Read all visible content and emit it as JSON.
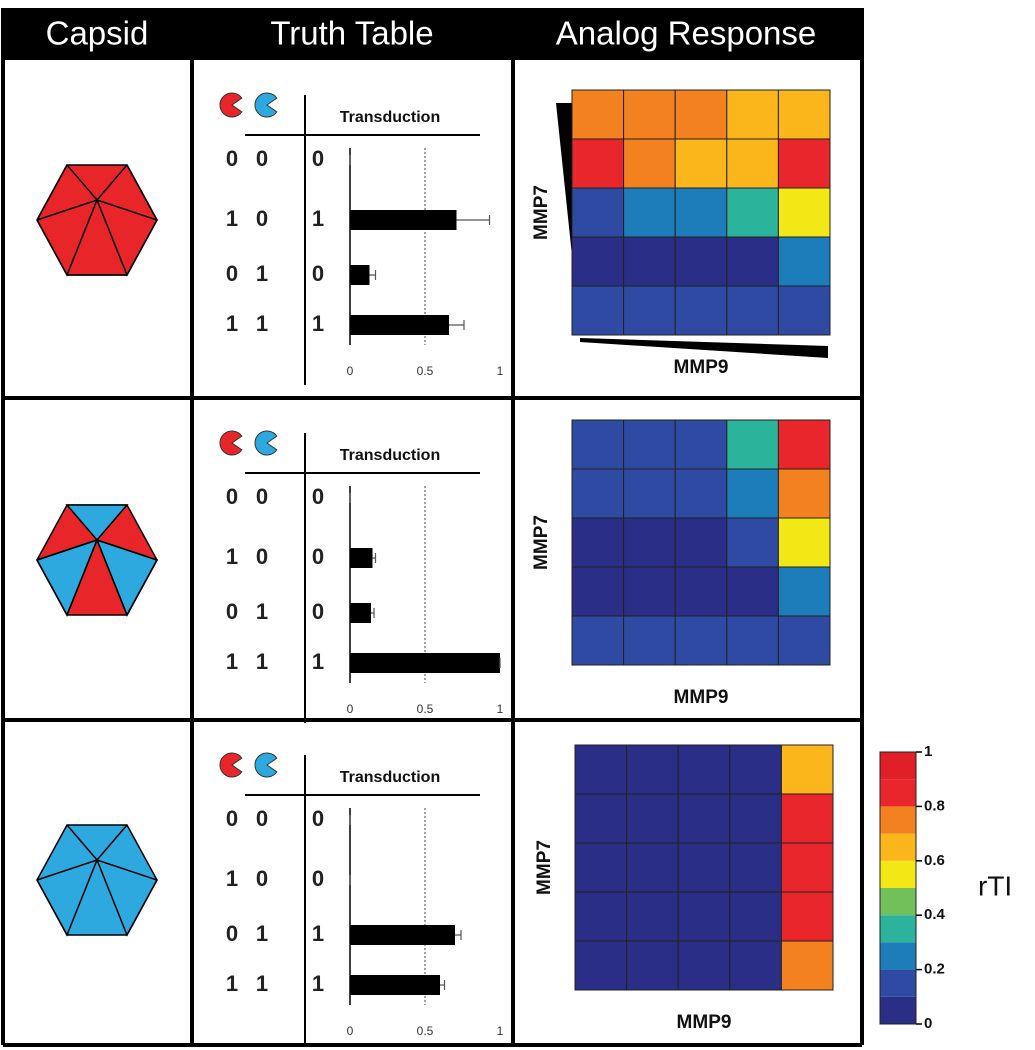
{
  "header": [
    "Capsid",
    "Truth Table",
    "Analog Response"
  ],
  "rows": [
    {
      "truth_table": {
        "inputs": [
          [
            0,
            0
          ],
          [
            1,
            0
          ],
          [
            0,
            1
          ],
          [
            1,
            1
          ]
        ],
        "outputs": [
          0,
          1,
          0,
          1
        ]
      }
    },
    {
      "truth_table": {
        "inputs": [
          [
            0,
            0
          ],
          [
            1,
            0
          ],
          [
            0,
            1
          ],
          [
            1,
            1
          ]
        ],
        "outputs": [
          0,
          0,
          0,
          1
        ]
      }
    },
    {
      "truth_table": {
        "inputs": [
          [
            0,
            0
          ],
          [
            1,
            0
          ],
          [
            0,
            1
          ],
          [
            1,
            1
          ]
        ],
        "outputs": [
          0,
          0,
          1,
          1
        ]
      }
    }
  ],
  "chart_data": [
    {
      "type": "hbar",
      "title": "Transduction",
      "values": [
        0,
        0.71,
        0.13,
        0.66
      ],
      "errors": [
        0,
        0.22,
        0.04,
        0.1
      ],
      "color": "#000000",
      "xlim": [
        0,
        1
      ],
      "xticks": [
        0,
        0.5,
        1
      ],
      "reference_line": 0.5
    },
    {
      "type": "heatmap",
      "xlabel": "MMP9",
      "ylabel": "MMP7",
      "zlim": [
        0,
        1
      ],
      "values": [
        [
          0.75,
          0.75,
          0.75,
          0.65,
          0.65
        ],
        [
          0.85,
          0.75,
          0.65,
          0.65,
          0.85
        ],
        [
          0.15,
          0.25,
          0.25,
          0.35,
          0.55
        ],
        [
          0.05,
          0.05,
          0.05,
          0.05,
          0.25
        ],
        [
          0.1,
          0.1,
          0.1,
          0.1,
          0.15
        ]
      ]
    },
    {
      "type": "hbar",
      "title": "Transduction",
      "values": [
        0,
        0.15,
        0.14,
        1
      ],
      "errors": [
        0,
        0.02,
        0.02,
        0
      ],
      "color": "#000000",
      "xlim": [
        0,
        1
      ],
      "xticks": [
        0,
        0.5,
        1
      ],
      "reference_line": 0.5
    },
    {
      "type": "heatmap",
      "xlabel": "MMP9",
      "ylabel": "MMP7",
      "zlim": [
        0,
        1
      ],
      "values": [
        [
          0.15,
          0.15,
          0.15,
          0.35,
          0.85
        ],
        [
          0.15,
          0.15,
          0.15,
          0.25,
          0.75
        ],
        [
          0.05,
          0.05,
          0.05,
          0.15,
          0.55
        ],
        [
          0.05,
          0.05,
          0.05,
          0.05,
          0.25
        ],
        [
          0.1,
          0.1,
          0.1,
          0.1,
          0.15
        ]
      ]
    },
    {
      "type": "hbar",
      "title": "Transduction",
      "values": [
        0,
        0,
        0.7,
        0.6
      ],
      "errors": [
        0,
        0,
        0.04,
        0.03
      ],
      "color": "#000000",
      "xlim": [
        0,
        1
      ],
      "xticks": [
        0,
        0.5,
        1
      ],
      "reference_line": 0.5
    },
    {
      "type": "heatmap",
      "xlabel": "MMP9",
      "ylabel": "MMP7",
      "zlim": [
        0,
        1
      ],
      "values": [
        [
          0.05,
          0.05,
          0.05,
          0.05,
          0.65
        ],
        [
          0.05,
          0.05,
          0.05,
          0.05,
          0.85
        ],
        [
          0.05,
          0.05,
          0.05,
          0.05,
          0.85
        ],
        [
          0.05,
          0.05,
          0.05,
          0.05,
          0.85
        ],
        [
          0.05,
          0.05,
          0.05,
          0.05,
          0.75
        ]
      ]
    },
    {
      "type": "colorbar",
      "label": "rTI",
      "ylim": [
        0,
        1
      ],
      "yticks": [
        0,
        0.2,
        0.4,
        0.6,
        0.8,
        1
      ],
      "colors": [
        "#2b2e86",
        "#2f4aa3",
        "#1c7dba",
        "#2bb39c",
        "#71c059",
        "#f1e815",
        "#fbb61b",
        "#f48120",
        "#e9262b",
        "#e01f26"
      ]
    }
  ]
}
